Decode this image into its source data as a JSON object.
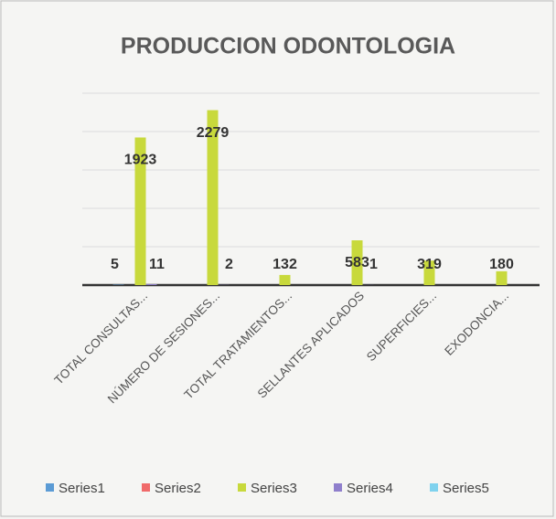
{
  "chart_data": {
    "type": "bar",
    "title": "PRODUCCION ODONTOLOGIA",
    "categories": [
      "TOTAL CONSULTAS...",
      "NÚMERO DE SESIONES...",
      "TOTAL TRATAMIENTOS...",
      "SELLANTES APLICADOS",
      "SUPERFICIES...",
      "EXODONCIA..."
    ],
    "series": [
      {
        "name": "Series1",
        "color": "#5b9bd5",
        "values": [
          5,
          null,
          null,
          null,
          null,
          null
        ]
      },
      {
        "name": "Series2",
        "color": "#f06a6a",
        "values": [
          null,
          null,
          null,
          null,
          null,
          null
        ]
      },
      {
        "name": "Series3",
        "color": "#c8d93c",
        "values": [
          1923,
          2279,
          132,
          583,
          319,
          180
        ]
      },
      {
        "name": "Series4",
        "color": "#8f7fcc",
        "values": [
          11,
          2,
          null,
          1,
          null,
          null
        ]
      },
      {
        "name": "Series5",
        "color": "#7fd2ee",
        "values": [
          null,
          null,
          null,
          null,
          null,
          null
        ]
      }
    ],
    "ylim": [
      0,
      2500
    ],
    "yticks": [
      0,
      500,
      1000,
      1500,
      2000,
      2500
    ],
    "grid": true,
    "legend": "bottom"
  }
}
